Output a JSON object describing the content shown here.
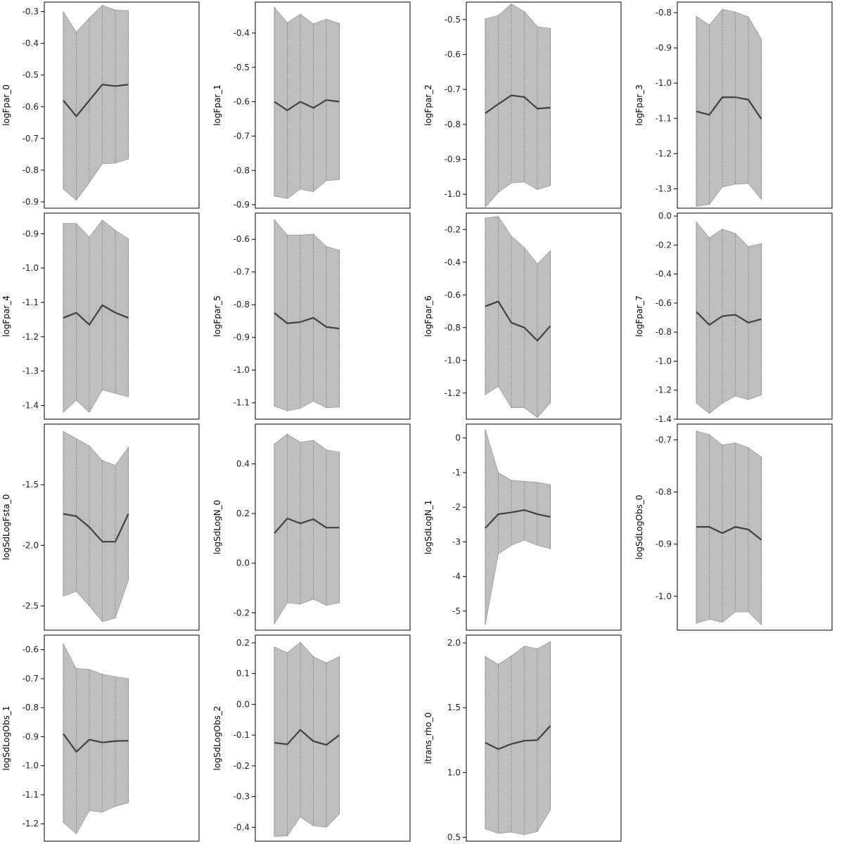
{
  "colors": {
    "band": "#bebebe",
    "band_edge": "#8a8a8a",
    "estimate_line": "#404040",
    "frame": "#000000"
  },
  "chart_data": [
    {
      "type": "area",
      "ylabel": "logFpar_0",
      "ylim": [
        -0.92,
        -0.27
      ],
      "ticks": [
        "-0.3",
        "-0.4",
        "-0.5",
        "-0.6",
        "-0.7",
        "-0.8",
        "-0.9"
      ],
      "x": [
        1,
        2,
        3,
        4,
        5,
        6
      ],
      "estimate": [
        -0.58,
        -0.63,
        -0.58,
        -0.53,
        -0.535,
        -0.53
      ],
      "lower": [
        -0.86,
        -0.895,
        -0.84,
        -0.78,
        -0.778,
        -0.765
      ],
      "upper": [
        -0.3,
        -0.365,
        -0.32,
        -0.28,
        -0.295,
        -0.297
      ]
    },
    {
      "type": "area",
      "ylabel": "logFpar_4",
      "ylim": [
        -1.44,
        -0.84
      ],
      "ticks": [
        "-0.9",
        "-1.0",
        "-1.1",
        "-1.2",
        "-1.3",
        "-1.4"
      ],
      "x": [
        1,
        2,
        3,
        4,
        5,
        6
      ],
      "estimate": [
        -1.145,
        -1.13,
        -1.165,
        -1.108,
        -1.13,
        -1.145
      ],
      "lower": [
        -1.42,
        -1.385,
        -1.42,
        -1.355,
        -1.365,
        -1.375
      ],
      "upper": [
        -0.87,
        -0.87,
        -0.91,
        -0.86,
        -0.89,
        -0.915
      ]
    },
    {
      "type": "area",
      "ylabel": "logSdLogFsta_0",
      "ylim": [
        -2.7,
        -1.0
      ],
      "ticks": [
        "-1.5",
        "-2.0",
        "-2.5"
      ],
      "x": [
        1,
        2,
        3,
        4,
        5,
        6
      ],
      "estimate": [
        -1.74,
        -1.76,
        -1.85,
        -1.97,
        -1.97,
        -1.74
      ],
      "lower": [
        -2.42,
        -2.38,
        -2.5,
        -2.63,
        -2.6,
        -2.29
      ],
      "upper": [
        -1.06,
        -1.12,
        -1.18,
        -1.3,
        -1.34,
        -1.19
      ]
    },
    {
      "type": "area",
      "ylabel": "logSdLogObs_1",
      "ylim": [
        -1.26,
        -0.55
      ],
      "ticks": [
        "-0.6",
        "-0.7",
        "-0.8",
        "-0.9",
        "-1.0",
        "-1.1",
        "-1.2"
      ],
      "x": [
        1,
        2,
        3,
        4,
        5,
        6
      ],
      "estimate": [
        -0.89,
        -0.952,
        -0.91,
        -0.92,
        -0.915,
        -0.914
      ],
      "lower": [
        -1.195,
        -1.235,
        -1.155,
        -1.16,
        -1.14,
        -1.128
      ],
      "upper": [
        -0.58,
        -0.665,
        -0.668,
        -0.685,
        -0.693,
        -0.7
      ]
    },
    {
      "type": "area",
      "ylabel": "logFpar_1",
      "ylim": [
        -0.91,
        -0.31
      ],
      "ticks": [
        "-0.4",
        "-0.5",
        "-0.6",
        "-0.7",
        "-0.8",
        "-0.9"
      ],
      "x": [
        1,
        2,
        3,
        4,
        5,
        6
      ],
      "estimate": [
        -0.6,
        -0.625,
        -0.6,
        -0.618,
        -0.595,
        -0.6
      ],
      "lower": [
        -0.875,
        -0.882,
        -0.855,
        -0.862,
        -0.83,
        -0.827
      ],
      "upper": [
        -0.325,
        -0.37,
        -0.345,
        -0.373,
        -0.36,
        -0.372
      ]
    },
    {
      "type": "area",
      "ylabel": "logFpar_5",
      "ylim": [
        -1.15,
        -0.52
      ],
      "ticks": [
        "-0.6",
        "-0.7",
        "-0.8",
        "-0.9",
        "-1.0",
        "-1.1"
      ],
      "x": [
        1,
        2,
        3,
        4,
        5,
        6
      ],
      "estimate": [
        -0.825,
        -0.857,
        -0.853,
        -0.84,
        -0.868,
        -0.873
      ],
      "lower": [
        -1.11,
        -1.125,
        -1.117,
        -1.095,
        -1.115,
        -1.113
      ],
      "upper": [
        -0.54,
        -0.587,
        -0.587,
        -0.584,
        -0.622,
        -0.633
      ]
    },
    {
      "type": "area",
      "ylabel": "logSdLogN_0",
      "ylim": [
        -0.27,
        0.56
      ],
      "ticks": [
        "0.4",
        "0.2",
        "0.0",
        "-0.2"
      ],
      "x": [
        1,
        2,
        3,
        4,
        5,
        6
      ],
      "estimate": [
        0.12,
        0.18,
        0.16,
        0.177,
        0.143,
        0.143
      ],
      "lower": [
        -0.245,
        -0.16,
        -0.165,
        -0.145,
        -0.17,
        -0.16
      ],
      "upper": [
        0.48,
        0.52,
        0.487,
        0.495,
        0.457,
        0.447
      ]
    },
    {
      "type": "area",
      "ylabel": "logSdLogObs_2",
      "ylim": [
        -0.445,
        0.225
      ],
      "ticks": [
        "0.2",
        "0.1",
        "0.0",
        "-0.1",
        "-0.2",
        "-0.3",
        "-0.4"
      ],
      "x": [
        1,
        2,
        3,
        4,
        5,
        6
      ],
      "estimate": [
        -0.125,
        -0.13,
        -0.083,
        -0.12,
        -0.132,
        -0.1
      ],
      "lower": [
        -0.43,
        -0.428,
        -0.367,
        -0.395,
        -0.4,
        -0.357
      ],
      "upper": [
        0.187,
        0.168,
        0.202,
        0.155,
        0.135,
        0.155
      ]
    },
    {
      "type": "area",
      "ylabel": "logFpar_2",
      "ylim": [
        -1.04,
        -0.45
      ],
      "ticks": [
        "-0.5",
        "-0.6",
        "-0.7",
        "-0.8",
        "-0.9",
        "-1.0"
      ],
      "x": [
        1,
        2,
        3,
        4,
        5,
        6
      ],
      "estimate": [
        -0.768,
        -0.742,
        -0.717,
        -0.722,
        -0.755,
        -0.752
      ],
      "lower": [
        -1.037,
        -0.995,
        -0.968,
        -0.965,
        -0.987,
        -0.975
      ],
      "upper": [
        -0.498,
        -0.488,
        -0.455,
        -0.477,
        -0.52,
        -0.525
      ]
    },
    {
      "type": "area",
      "ylabel": "logFpar_6",
      "ylim": [
        -1.36,
        -0.1
      ],
      "ticks": [
        "-0.2",
        "-0.4",
        "-0.6",
        "-0.8",
        "-1.0",
        "-1.2"
      ],
      "x": [
        1,
        2,
        3,
        4,
        5,
        6
      ],
      "estimate": [
        -0.67,
        -0.64,
        -0.77,
        -0.8,
        -0.88,
        -0.79
      ],
      "lower": [
        -1.21,
        -1.16,
        -1.29,
        -1.29,
        -1.35,
        -1.26
      ],
      "upper": [
        -0.13,
        -0.12,
        -0.24,
        -0.31,
        -0.41,
        -0.33
      ]
    },
    {
      "type": "area",
      "ylabel": "logSdLogN_1",
      "ylim": [
        -5.55,
        0.4
      ],
      "ticks": [
        "0",
        "-1",
        "-2",
        "-3",
        "-4",
        "-5"
      ],
      "x": [
        1,
        2,
        3,
        4,
        5,
        6
      ],
      "estimate": [
        -2.6,
        -2.2,
        -2.15,
        -2.08,
        -2.2,
        -2.28
      ],
      "lower": [
        -5.4,
        -3.35,
        -3.1,
        -2.95,
        -3.1,
        -3.2
      ],
      "upper": [
        0.25,
        -1.0,
        -1.22,
        -1.25,
        -1.28,
        -1.35
      ]
    },
    {
      "type": "area",
      "ylabel": "itrans_rho_0",
      "ylim": [
        0.47,
        2.06
      ],
      "ticks": [
        "2.0",
        "1.5",
        "1.0",
        "0.5"
      ],
      "x": [
        1,
        2,
        3,
        4,
        5,
        6
      ],
      "estimate": [
        1.23,
        1.18,
        1.22,
        1.245,
        1.25,
        1.36
      ],
      "lower": [
        0.565,
        0.53,
        0.54,
        0.52,
        0.545,
        0.71
      ],
      "upper": [
        1.895,
        1.835,
        1.9,
        1.975,
        1.955,
        2.01
      ]
    },
    {
      "type": "area",
      "ylabel": "logFpar_3",
      "ylim": [
        -1.355,
        -0.77
      ],
      "ticks": [
        "-0.8",
        "-0.9",
        "-1.0",
        "-1.1",
        "-1.2",
        "-1.3"
      ],
      "x": [
        1,
        2,
        3,
        4,
        5,
        6
      ],
      "estimate": [
        -1.08,
        -1.09,
        -1.04,
        -1.04,
        -1.047,
        -1.102
      ],
      "lower": [
        -1.35,
        -1.345,
        -1.295,
        -1.287,
        -1.285,
        -1.33
      ],
      "upper": [
        -0.81,
        -0.835,
        -0.79,
        -0.798,
        -0.812,
        -0.875
      ]
    },
    {
      "type": "area",
      "ylabel": "logFpar_7",
      "ylim": [
        -1.4,
        0.02
      ],
      "ticks": [
        "0.0",
        "-0.2",
        "-0.4",
        "-0.6",
        "-0.8",
        "-1.0",
        "-1.2",
        "-1.4"
      ],
      "x": [
        1,
        2,
        3,
        4,
        5,
        6
      ],
      "estimate": [
        -0.66,
        -0.75,
        -0.69,
        -0.68,
        -0.735,
        -0.71
      ],
      "lower": [
        -1.29,
        -1.36,
        -1.29,
        -1.24,
        -1.265,
        -1.235
      ],
      "upper": [
        -0.04,
        -0.15,
        -0.09,
        -0.12,
        -0.21,
        -0.19
      ]
    },
    {
      "type": "area",
      "ylabel": "logSdLogObs_0",
      "ylim": [
        -1.065,
        -0.67
      ],
      "ticks": [
        "-0.7",
        "-0.8",
        "-0.9",
        "-1.0"
      ],
      "x": [
        1,
        2,
        3,
        4,
        5,
        6
      ],
      "estimate": [
        -0.867,
        -0.867,
        -0.879,
        -0.867,
        -0.872,
        -0.892
      ],
      "lower": [
        -1.052,
        -1.044,
        -1.05,
        -1.03,
        -1.03,
        -1.055
      ],
      "upper": [
        -0.683,
        -0.69,
        -0.71,
        -0.706,
        -0.715,
        -0.733
      ]
    }
  ]
}
